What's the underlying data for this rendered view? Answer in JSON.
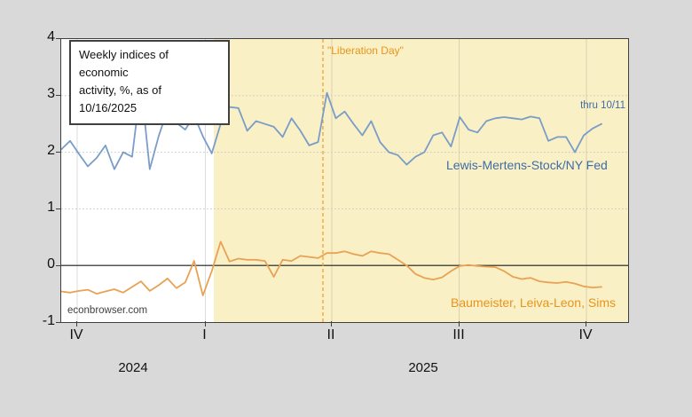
{
  "page": {
    "background": "#D9D9D9"
  },
  "title_box": {
    "line1": "Weekly indices of economic",
    "line2": "activity, %, as of 10/16/2025"
  },
  "annotations": {
    "liberation_day": "\"Liberation Day\"",
    "thru_note": "thru 10/11",
    "series1_label": "Lewis-Mertens-Stock/NY Fed",
    "series2_label": "Baumeister, Leiva-Leon, Sims",
    "watermark": "econbrowser.com"
  },
  "colors": {
    "background": "#D9D9D9",
    "plot_background": "#FFFFFF",
    "shade_yellow": "#FAF0C6",
    "blue_line": "#7A9CC9",
    "blue_text": "#3F6CA6",
    "orange_line": "#E8A254",
    "orange_text": "#E8941C",
    "zero_line": "#1a1a1a",
    "gridline": "#c4c4c4",
    "event_line": "#F0A030"
  },
  "chart_data": {
    "type": "line",
    "title": "Weekly indices of economic activity, %, as of 10/16/2025",
    "xlabel": "",
    "ylabel": "",
    "ylim": [
      -1,
      4
    ],
    "y_ticks": [
      "4",
      "3",
      "2",
      "1",
      "0",
      "-1"
    ],
    "x_quarter_ticks": [
      "IV",
      "I",
      "II",
      "III",
      "IV"
    ],
    "x_year_labels": [
      "2024",
      "2025"
    ],
    "x_unit": "weekly observations, 2024Q4 through 2025Q4 (blue thru 10/11)",
    "grid": "horizontal dotted at integers; solid black line at 0",
    "shaded_region": "calendar year 2025 shaded light yellow",
    "vertical_event_line": {
      "label": "\"Liberation Day\"",
      "style": "orange dashed, early April 2025"
    },
    "legend_position": "in-plot text labels",
    "series": [
      {
        "name": "Lewis-Mertens-Stock/NY Fed",
        "color": "#7A9CC9",
        "note": "thru 10/11",
        "values": [
          2.05,
          2.2,
          1.97,
          1.75,
          1.9,
          2.12,
          1.7,
          2.0,
          1.92,
          3.2,
          1.7,
          2.28,
          2.75,
          2.52,
          2.4,
          2.65,
          2.28,
          1.98,
          2.5,
          2.8,
          2.78,
          2.38,
          2.55,
          2.5,
          2.45,
          2.27,
          2.6,
          2.38,
          2.12,
          2.18,
          3.05,
          2.6,
          2.72,
          2.5,
          2.3,
          2.55,
          2.18,
          2.0,
          1.95,
          1.78,
          1.92,
          2.0,
          2.3,
          2.35,
          2.1,
          2.62,
          2.4,
          2.35,
          2.55,
          2.6,
          2.62,
          2.6,
          2.58,
          2.63,
          2.6,
          2.2,
          2.27,
          2.27,
          2.0,
          2.3,
          2.42,
          2.5
        ]
      },
      {
        "name": "Baumeister, Leiva-Leon, Sims",
        "color": "#E8A254",
        "values": [
          -0.46,
          -0.48,
          -0.45,
          -0.43,
          -0.5,
          -0.46,
          -0.42,
          -0.48,
          -0.38,
          -0.28,
          -0.45,
          -0.35,
          -0.23,
          -0.4,
          -0.3,
          0.08,
          -0.53,
          -0.1,
          0.42,
          0.07,
          0.12,
          0.1,
          0.1,
          0.08,
          -0.2,
          0.1,
          0.08,
          0.17,
          0.15,
          0.13,
          0.22,
          0.22,
          0.25,
          0.2,
          0.17,
          0.25,
          0.22,
          0.2,
          0.1,
          0.0,
          -0.15,
          -0.22,
          -0.25,
          -0.21,
          -0.1,
          -0.01,
          0.01,
          -0.01,
          -0.02,
          -0.03,
          -0.1,
          -0.2,
          -0.24,
          -0.22,
          -0.28,
          -0.3,
          -0.31,
          -0.29,
          -0.32,
          -0.37,
          -0.39,
          -0.38
        ]
      }
    ]
  }
}
